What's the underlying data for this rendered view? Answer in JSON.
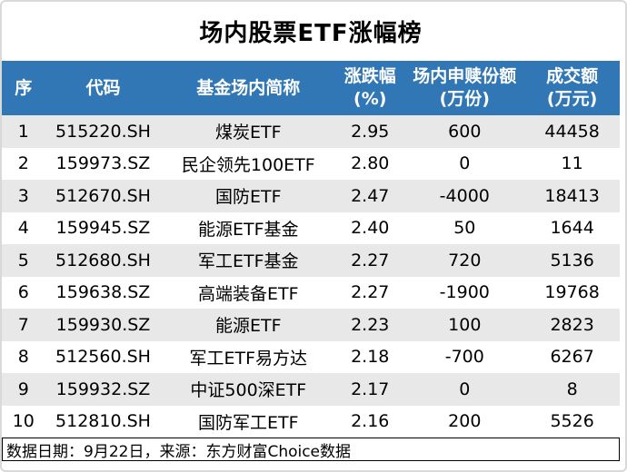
{
  "title": "场内股票ETF涨幅榜",
  "table": {
    "columns": [
      {
        "line1": "序",
        "line2": ""
      },
      {
        "line1": "代码",
        "line2": ""
      },
      {
        "line1": "基金场内简称",
        "line2": ""
      },
      {
        "line1": "涨跌幅",
        "line2": "(%)"
      },
      {
        "line1": "场内申赎份额",
        "line2": "(万份)"
      },
      {
        "line1": "成交额",
        "line2": "(万元)"
      }
    ],
    "rows": [
      {
        "rank": "1",
        "code": "515220.SH",
        "name": "煤炭ETF",
        "change": "2.95",
        "shares": "600",
        "turnover": "44458"
      },
      {
        "rank": "2",
        "code": "159973.SZ",
        "name": "民企领先100ETF",
        "change": "2.80",
        "shares": "0",
        "turnover": "11"
      },
      {
        "rank": "3",
        "code": "512670.SH",
        "name": "国防ETF",
        "change": "2.47",
        "shares": "-4000",
        "turnover": "18413"
      },
      {
        "rank": "4",
        "code": "159945.SZ",
        "name": "能源ETF基金",
        "change": "2.40",
        "shares": "50",
        "turnover": "1644"
      },
      {
        "rank": "5",
        "code": "512680.SH",
        "name": "军工ETF基金",
        "change": "2.27",
        "shares": "720",
        "turnover": "5136"
      },
      {
        "rank": "6",
        "code": "159638.SZ",
        "name": "高端装备ETF",
        "change": "2.27",
        "shares": "-1900",
        "turnover": "19768"
      },
      {
        "rank": "7",
        "code": "159930.SZ",
        "name": "能源ETF",
        "change": "2.23",
        "shares": "100",
        "turnover": "2823"
      },
      {
        "rank": "8",
        "code": "512560.SH",
        "name": "军工ETF易方达",
        "change": "2.18",
        "shares": "-700",
        "turnover": "6267"
      },
      {
        "rank": "9",
        "code": "159932.SZ",
        "name": "中证500深ETF",
        "change": "2.17",
        "shares": "0",
        "turnover": "8"
      },
      {
        "rank": "10",
        "code": "512810.SH",
        "name": "国防军工ETF",
        "change": "2.16",
        "shares": "200",
        "turnover": "5526"
      }
    ]
  },
  "footer": {
    "note": "数据日期：9月22日，来源：东方财富Choice数据"
  },
  "colors": {
    "header_bg": "#3277b5",
    "header_text": "#ffffff",
    "stripe_bg": "#e8e8e8",
    "body_text": "#000000",
    "card_border": "#d9d9d9",
    "footer_border": "#000000"
  },
  "chart_data": {
    "type": "table",
    "title": "场内股票ETF涨幅榜",
    "columns": [
      "序",
      "代码",
      "基金场内简称",
      "涨跌幅(%)",
      "场内申赎份额(万份)",
      "成交额(万元)"
    ],
    "rows": [
      [
        "1",
        "515220.SH",
        "煤炭ETF",
        2.95,
        600,
        44458
      ],
      [
        "2",
        "159973.SZ",
        "民企领先100ETF",
        2.8,
        0,
        11
      ],
      [
        "3",
        "512670.SH",
        "国防ETF",
        2.47,
        -4000,
        18413
      ],
      [
        "4",
        "159945.SZ",
        "能源ETF基金",
        2.4,
        50,
        1644
      ],
      [
        "5",
        "512680.SH",
        "军工ETF基金",
        2.27,
        720,
        5136
      ],
      [
        "6",
        "159638.SZ",
        "高端装备ETF",
        2.27,
        -1900,
        19768
      ],
      [
        "7",
        "159930.SZ",
        "能源ETF",
        2.23,
        100,
        2823
      ],
      [
        "8",
        "512560.SH",
        "军工ETF易方达",
        2.18,
        -700,
        6267
      ],
      [
        "9",
        "159932.SZ",
        "中证500深ETF",
        2.17,
        0,
        8
      ],
      [
        "10",
        "512810.SH",
        "国防军工ETF",
        2.16,
        200,
        5526
      ]
    ],
    "source_note": "数据日期：9月22日，来源：东方财富Choice数据"
  }
}
